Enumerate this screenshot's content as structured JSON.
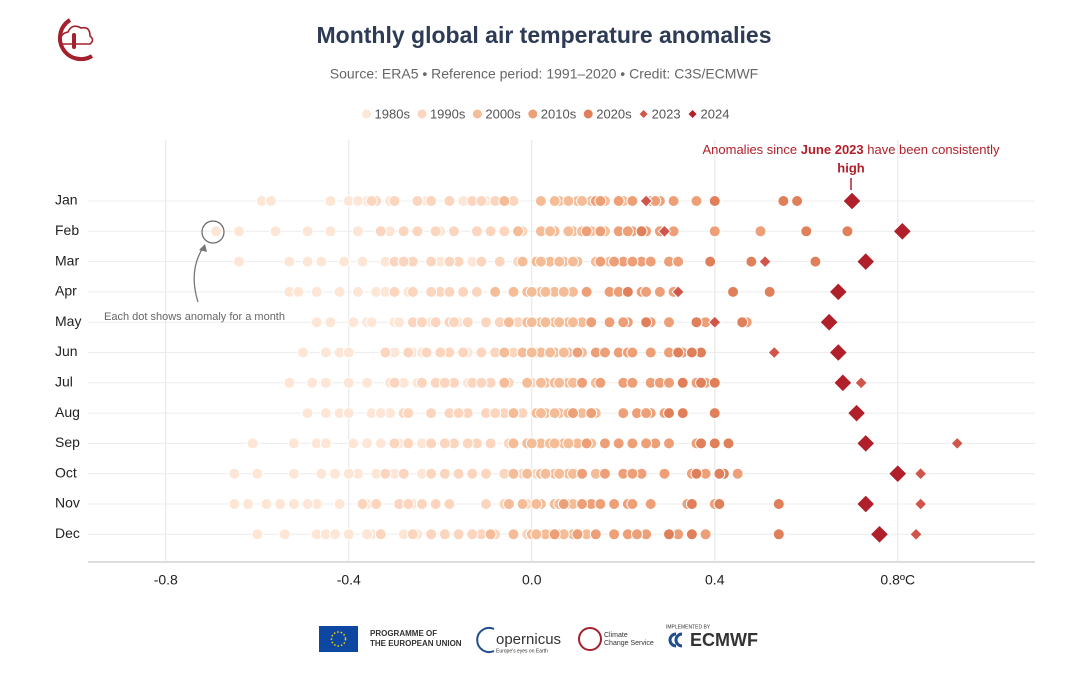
{
  "chart_data": {
    "type": "strip",
    "title": "Monthly global air temperature anomalies",
    "subtitle": "Source: ERA5 • Reference period: 1991–2020 • Credit: C3S/ECMWF",
    "categories": [
      "Jan",
      "Feb",
      "Mar",
      "Apr",
      "May",
      "Jun",
      "Jul",
      "Aug",
      "Sep",
      "Oct",
      "Nov",
      "Dec"
    ],
    "xlim": [
      -0.97,
      1.1
    ],
    "xticks": [
      -0.8,
      -0.4,
      {
        "value": 0,
        "label": "0.0"
      },
      0.4,
      {
        "value": 0.8,
        "label": "0.8ºC"
      }
    ],
    "grid": true,
    "series": [
      {
        "name": "1980s",
        "color": "#fde6d6",
        "marker": "circle",
        "values": [
          [
            -0.59,
            -0.57,
            -0.44,
            -0.4,
            -0.36,
            -0.31,
            -0.23,
            -0.15,
            -0.1,
            -0.38
          ],
          [
            -0.69,
            -0.64,
            -0.56,
            -0.49,
            -0.38,
            -0.33,
            -0.28,
            -0.2,
            -0.44,
            -0.31
          ],
          [
            -0.64,
            -0.53,
            -0.49,
            -0.41,
            -0.37,
            -0.32,
            -0.27,
            -0.2,
            -0.13,
            -0.46
          ],
          [
            -0.53,
            -0.51,
            -0.47,
            -0.42,
            -0.34,
            -0.32,
            -0.27,
            -0.21,
            -0.15,
            -0.38
          ],
          [
            -0.47,
            -0.44,
            -0.39,
            -0.36,
            -0.3,
            -0.25,
            -0.22,
            -0.16,
            -0.35,
            -0.29
          ],
          [
            -0.5,
            -0.45,
            -0.42,
            -0.32,
            -0.3,
            -0.26,
            -0.19,
            -0.14,
            -0.4,
            -0.24
          ],
          [
            -0.53,
            -0.48,
            -0.45,
            -0.36,
            -0.31,
            -0.25,
            -0.2,
            -0.14,
            -0.4,
            -0.28
          ],
          [
            -0.49,
            -0.45,
            -0.42,
            -0.4,
            -0.35,
            -0.31,
            -0.27,
            -0.18,
            -0.14,
            -0.33
          ],
          [
            -0.61,
            -0.52,
            -0.47,
            -0.45,
            -0.39,
            -0.33,
            -0.29,
            -0.24,
            -0.19,
            -0.36
          ],
          [
            -0.65,
            -0.6,
            -0.52,
            -0.46,
            -0.43,
            -0.38,
            -0.3,
            -0.24,
            -0.4,
            -0.34
          ],
          [
            -0.65,
            -0.62,
            -0.58,
            -0.55,
            -0.52,
            -0.47,
            -0.42,
            -0.36,
            -0.26,
            -0.49
          ],
          [
            -0.6,
            -0.54,
            -0.47,
            -0.45,
            -0.4,
            -0.35,
            -0.28,
            -0.25,
            -0.43,
            -0.36
          ]
        ]
      },
      {
        "name": "1990s",
        "color": "#fbd5bd",
        "marker": "circle",
        "values": [
          [
            -0.34,
            -0.3,
            -0.22,
            -0.18,
            -0.13,
            -0.08,
            -0.04,
            -0.25,
            -0.11,
            -0.35
          ],
          [
            -0.28,
            -0.25,
            -0.17,
            -0.12,
            -0.06,
            -0.02,
            0.02,
            -0.21,
            -0.09,
            -0.33
          ],
          [
            -0.3,
            -0.26,
            -0.22,
            -0.16,
            -0.11,
            -0.07,
            -0.03,
            0.01,
            -0.18,
            -0.28
          ],
          [
            -0.3,
            -0.26,
            -0.2,
            -0.15,
            -0.12,
            -0.08,
            -0.04,
            0,
            -0.18,
            -0.22
          ],
          [
            -0.26,
            -0.21,
            -0.18,
            -0.14,
            -0.1,
            -0.07,
            -0.03,
            0.02,
            -0.17,
            -0.24
          ],
          [
            -0.32,
            -0.27,
            -0.23,
            -0.18,
            -0.11,
            -0.08,
            -0.04,
            0.01,
            -0.15,
            -0.2
          ],
          [
            -0.3,
            -0.24,
            -0.21,
            -0.17,
            -0.13,
            -0.09,
            -0.05,
            0,
            -0.19,
            -0.11
          ],
          [
            -0.28,
            -0.27,
            -0.22,
            -0.18,
            -0.14,
            -0.1,
            -0.06,
            -0.02,
            -0.16,
            -0.08
          ],
          [
            -0.3,
            -0.27,
            -0.22,
            -0.17,
            -0.12,
            -0.09,
            -0.05,
            -0.01,
            -0.19,
            -0.14
          ],
          [
            -0.32,
            -0.28,
            -0.22,
            -0.16,
            -0.1,
            -0.06,
            -0.02,
            0.01,
            -0.19,
            -0.13
          ],
          [
            -0.37,
            -0.34,
            -0.29,
            -0.24,
            -0.18,
            -0.1,
            -0.06,
            -0.01,
            -0.21,
            -0.27
          ],
          [
            -0.33,
            -0.26,
            -0.22,
            -0.16,
            -0.11,
            -0.08,
            -0.04,
            -0.01,
            -0.19,
            -0.13
          ]
        ]
      },
      {
        "name": "2000s",
        "color": "#f5bc98",
        "marker": "circle",
        "values": [
          [
            -0.06,
            0.02,
            0.06,
            0.1,
            0.13,
            0.16,
            0.2,
            0.11,
            0.05,
            0.08
          ],
          [
            -0.03,
            0.02,
            0.05,
            0.09,
            0.13,
            0.16,
            0.19,
            0.08,
            0.04,
            0.11
          ],
          [
            -0.02,
            0.01,
            0.04,
            0.07,
            0.1,
            0.14,
            0.17,
            0.06,
            0.02,
            0.09
          ],
          [
            -0.08,
            -0.04,
            -0.01,
            0.02,
            0.05,
            0.09,
            0.12,
            0.03,
            0.07,
            0
          ],
          [
            -0.05,
            -0.01,
            0.02,
            0.05,
            0.08,
            0.11,
            0.03,
            0.06,
            0,
            0.09
          ],
          [
            -0.06,
            -0.02,
            0.02,
            0.05,
            0.08,
            0.11,
            0.04,
            0.07,
            0,
            0.1
          ],
          [
            -0.06,
            -0.01,
            0.03,
            0.05,
            0.08,
            0.11,
            0.14,
            0.06,
            0.02,
            0.09
          ],
          [
            -0.04,
            0.01,
            0.03,
            0.06,
            0.08,
            0.11,
            0.14,
            0.05,
            0.02,
            0.09
          ],
          [
            -0.04,
            -0.01,
            0.02,
            0.04,
            0.07,
            0.1,
            0.13,
            0.05,
            0,
            0.08
          ],
          [
            -0.04,
            -0.01,
            0.02,
            0.05,
            0.08,
            0.11,
            0.14,
            0.06,
            0.03,
            0.09
          ],
          [
            -0.05,
            -0.02,
            0.02,
            0.05,
            0.08,
            0.11,
            0.13,
            0.06,
            0.01,
            0.09
          ],
          [
            -0.09,
            -0.04,
            0,
            0.04,
            0.06,
            0.09,
            0.12,
            0.03,
            0.01,
            0.07
          ]
        ]
      },
      {
        "name": "2010s",
        "color": "#ed9f78",
        "marker": "circle",
        "values": [
          [
            0.14,
            0.19,
            0.26,
            0.28,
            0.36,
            0.4,
            0.22,
            0.31,
            0.15,
            0.27
          ],
          [
            0.12,
            0.19,
            0.22,
            0.25,
            0.31,
            0.4,
            0.5,
            0.28,
            0.15,
            0.21
          ],
          [
            0.15,
            0.2,
            0.24,
            0.3,
            0.39,
            0.48,
            0.26,
            0.22,
            0.18,
            0.32
          ],
          [
            0.12,
            0.17,
            0.21,
            0.24,
            0.28,
            0.31,
            0.44,
            0.52,
            0.19,
            0.25
          ],
          [
            0.13,
            0.17,
            0.21,
            0.25,
            0.3,
            0.36,
            0.38,
            0.47,
            0.2,
            0.26
          ],
          [
            0.1,
            0.14,
            0.19,
            0.21,
            0.26,
            0.3,
            0.37,
            0.22,
            0.16,
            0.33
          ],
          [
            0.11,
            0.15,
            0.2,
            0.26,
            0.28,
            0.33,
            0.36,
            0.38,
            0.22,
            0.3
          ],
          [
            0.09,
            0.13,
            0.2,
            0.23,
            0.26,
            0.29,
            0.33,
            0.4,
            0.25,
            0.3
          ],
          [
            0.12,
            0.16,
            0.19,
            0.22,
            0.27,
            0.3,
            0.36,
            0.4,
            0.25,
            0.43
          ],
          [
            0.11,
            0.16,
            0.2,
            0.24,
            0.29,
            0.35,
            0.38,
            0.42,
            0.22,
            0.45
          ],
          [
            0.07,
            0.13,
            0.15,
            0.18,
            0.21,
            0.26,
            0.34,
            0.4,
            0.22,
            0.11
          ],
          [
            0.05,
            0.1,
            0.14,
            0.18,
            0.21,
            0.25,
            0.32,
            0.38,
            0.23,
            0.14
          ]
        ]
      },
      {
        "name": "2020s",
        "color": "#e0805b",
        "marker": "circle",
        "values": [
          [
            0.58,
            0.4,
            0.55
          ],
          [
            0.69,
            0.24,
            0.6
          ],
          [
            0.62,
            0.39,
            0.48
          ],
          [
            0.52,
            0.21,
            0.44
          ],
          [
            0.46,
            0.25,
            0.36
          ],
          [
            0.37,
            0.35,
            0.32
          ],
          [
            0.4,
            0.33,
            0.37
          ],
          [
            0.4,
            0.3,
            0.33
          ],
          [
            0.43,
            0.4,
            0.37
          ],
          [
            0.42,
            0.41,
            0.36
          ],
          [
            0.54,
            0.41,
            0.35
          ],
          [
            0.54,
            0.35,
            0.3
          ]
        ]
      },
      {
        "name": "2023",
        "color": "#d0564c",
        "marker": "diamond",
        "values": [
          0.25,
          0.29,
          0.51,
          0.32,
          0.4,
          0.53,
          0.72,
          0.71,
          0.93,
          0.85,
          0.85,
          0.84
        ]
      },
      {
        "name": "2024",
        "color": "#b1202a",
        "marker": "diamond",
        "values": [
          0.7,
          0.81,
          0.73,
          0.67,
          0.65,
          0.67,
          0.68,
          0.71,
          0.73,
          0.8,
          0.73,
          0.76
        ]
      }
    ],
    "annotation": {
      "before": "Anomalies since ",
      "bold": "June 2023",
      "after": " have been consistently",
      "line2": "high"
    },
    "note": "Each dot shows anomaly for a month"
  },
  "footer": {
    "eu": [
      "PROGRAMME OF",
      "THE EUROPEAN UNION"
    ],
    "copernicus": "opernicus",
    "copernicus_sub": "Europe's eyes on Earth",
    "c3s": [
      "Climate",
      "Change Service"
    ],
    "implemented": "IMPLEMENTED BY",
    "ecmwf": "ECMWF"
  }
}
